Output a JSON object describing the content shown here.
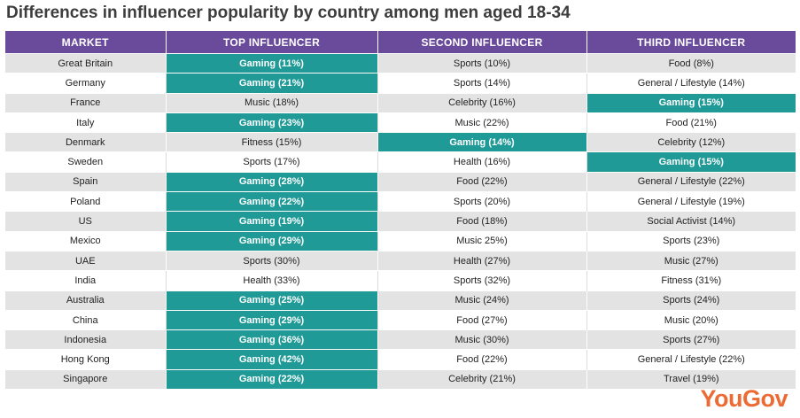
{
  "title": "Differences in influencer popularity by country among men aged 18-34",
  "logo": "YouGov",
  "colors": {
    "header": "#6a4a9a",
    "highlight": "#1f9a96",
    "logo": "#ec6a34"
  },
  "chart_data": {
    "type": "table",
    "columns": [
      "MARKET",
      "TOP  INFLUENCER",
      "SECOND INFLUENCER",
      "THIRD INFLUENCER"
    ],
    "rows": [
      {
        "cells": [
          "Great Britain",
          "Gaming (11%)",
          "Sports (10%)",
          "Food (8%)"
        ],
        "highlight": [
          1
        ]
      },
      {
        "cells": [
          "Germany",
          "Gaming (21%)",
          "Sports (14%)",
          "General / Lifestyle (14%)"
        ],
        "highlight": [
          1
        ]
      },
      {
        "cells": [
          "France",
          "Music (18%)",
          "Celebrity (16%)",
          "Gaming (15%)"
        ],
        "highlight": [
          3
        ]
      },
      {
        "cells": [
          "Italy",
          "Gaming (23%)",
          "Music (22%)",
          "Food (21%)"
        ],
        "highlight": [
          1
        ]
      },
      {
        "cells": [
          "Denmark",
          "Fitness (15%)",
          "Gaming (14%)",
          "Celebrity (12%)"
        ],
        "highlight": [
          2
        ]
      },
      {
        "cells": [
          "Sweden",
          "Sports (17%)",
          "Health (16%)",
          "Gaming (15%)"
        ],
        "highlight": [
          3
        ]
      },
      {
        "cells": [
          "Spain",
          "Gaming (28%)",
          "Food (22%)",
          "General / Lifestyle (22%)"
        ],
        "highlight": [
          1
        ]
      },
      {
        "cells": [
          "Poland",
          "Gaming (22%)",
          "Sports (20%)",
          "General / Lifestyle (19%)"
        ],
        "highlight": [
          1
        ]
      },
      {
        "cells": [
          "US",
          "Gaming (19%)",
          "Food (18%)",
          "Social Activist (14%)"
        ],
        "highlight": [
          1
        ]
      },
      {
        "cells": [
          "Mexico",
          "Gaming (29%)",
          "Music 25%)",
          "Sports (23%)"
        ],
        "highlight": [
          1
        ]
      },
      {
        "cells": [
          "UAE",
          "Sports (30%)",
          "Health (27%)",
          "Music (27%)"
        ],
        "highlight": []
      },
      {
        "cells": [
          "India",
          "Health (33%)",
          "Sports (32%)",
          "Fitness (31%)"
        ],
        "highlight": []
      },
      {
        "cells": [
          "Australia",
          "Gaming (25%)",
          "Music (24%)",
          "Sports (24%)"
        ],
        "highlight": [
          1
        ]
      },
      {
        "cells": [
          "China",
          "Gaming (29%)",
          "Food (27%)",
          "Music (20%)"
        ],
        "highlight": [
          1
        ]
      },
      {
        "cells": [
          "Indonesia",
          "Gaming (36%)",
          "Music (30%)",
          "Sports (27%)"
        ],
        "highlight": [
          1
        ]
      },
      {
        "cells": [
          "Hong Kong",
          "Gaming (42%)",
          "Food (22%)",
          "General / Lifestyle (22%)"
        ],
        "highlight": [
          1
        ]
      },
      {
        "cells": [
          "Singapore",
          "Gaming (22%)",
          "Celebrity (21%)",
          "Travel (19%)"
        ],
        "highlight": [
          1
        ]
      }
    ]
  }
}
